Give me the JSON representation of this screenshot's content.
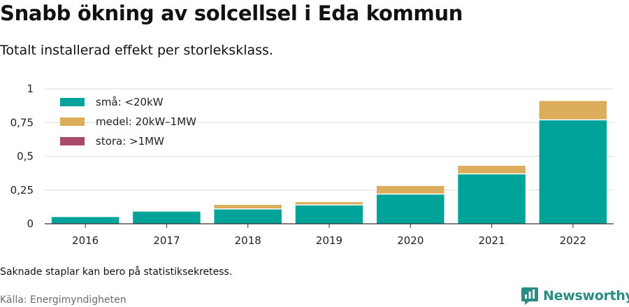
{
  "title": "Snabb ökning av solcellsel i Eda kommun",
  "subtitle": "Totalt installerad effekt per storleksklass.",
  "note": "Saknade staplar kan bero på statistiksekretess.",
  "source": "Källa: Energimyndigheten",
  "brand": {
    "name": "Newsworthy",
    "icon": "newsworthy-logo-icon",
    "color": "#2a8c84"
  },
  "chart_data": {
    "type": "bar",
    "stacked": true,
    "categories": [
      "2016",
      "2017",
      "2018",
      "2019",
      "2020",
      "2021",
      "2022"
    ],
    "series": [
      {
        "name": "små: <20kW",
        "color": "#00a39a",
        "values": [
          0.05,
          0.09,
          0.11,
          0.14,
          0.22,
          0.37,
          0.77
        ]
      },
      {
        "name": "medel: 20kW–1MW",
        "color": "#dcae5b",
        "values": [
          0,
          0,
          0.03,
          0.02,
          0.06,
          0.06,
          0.14
        ]
      },
      {
        "name": "stora: >1MW",
        "color": "#a84a6c",
        "values": [
          0,
          0,
          0,
          0,
          0,
          0,
          0
        ]
      }
    ],
    "yticks": [
      "0",
      "0,25",
      "0,5",
      "0,75",
      "1"
    ],
    "ylim": [
      0,
      1
    ],
    "legend_position": "top-left",
    "grid": true
  }
}
